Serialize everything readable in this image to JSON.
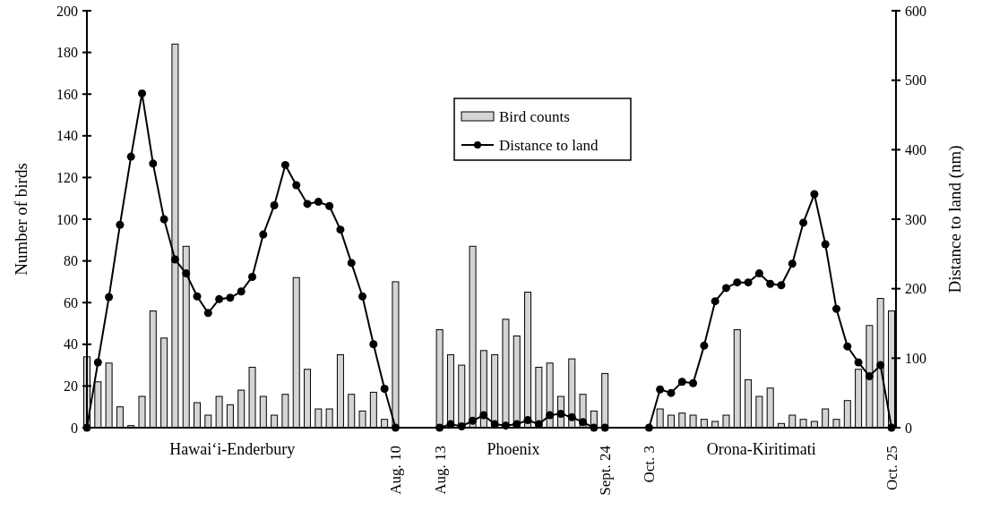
{
  "chart_data": {
    "type": "bar",
    "categories": [
      null,
      null,
      null,
      null,
      null,
      null,
      null,
      null,
      null,
      null,
      null,
      null,
      null,
      null,
      null,
      null,
      null,
      null,
      null,
      null,
      null,
      null,
      null,
      null,
      null,
      null,
      null,
      null,
      "Aug. 10",
      null,
      null,
      null,
      "Aug. 13",
      null,
      null,
      null,
      null,
      null,
      null,
      null,
      null,
      null,
      null,
      null,
      null,
      null,
      null,
      "Sept. 24",
      null,
      null,
      null,
      "Oct. 3",
      null,
      null,
      null,
      null,
      null,
      null,
      null,
      null,
      null,
      null,
      null,
      null,
      null,
      null,
      null,
      null,
      null,
      null,
      null,
      null,
      null,
      "Oct. 25"
    ],
    "series": [
      {
        "name": "Bird counts",
        "color": "#d4d4d4",
        "values": [
          34,
          22,
          31,
          10,
          1,
          15,
          56,
          43,
          184,
          87,
          12,
          6,
          15,
          11,
          18,
          29,
          15,
          6,
          16,
          72,
          28,
          9,
          9,
          35,
          16,
          8,
          17,
          4,
          70,
          null,
          null,
          null,
          47,
          35,
          30,
          87,
          37,
          35,
          52,
          44,
          65,
          29,
          31,
          15,
          33,
          16,
          8,
          26,
          null,
          null,
          null,
          null,
          9,
          6,
          7,
          6,
          4,
          3,
          6,
          47,
          23,
          15,
          19,
          2,
          6,
          4,
          3,
          9,
          4,
          13,
          28,
          49,
          62,
          56
        ]
      },
      {
        "name": "Distance to land",
        "type": "line",
        "axis": "y2",
        "color": "#000000",
        "marker": "circle",
        "line_style": "solid",
        "values": [
          0,
          94,
          188,
          292,
          390,
          481,
          380,
          300,
          242,
          222,
          189,
          165,
          185,
          187,
          196,
          217,
          278,
          320,
          378,
          349,
          322,
          325,
          319,
          285,
          237,
          189,
          120,
          56,
          0,
          null,
          null,
          null,
          0,
          5,
          2,
          10,
          18,
          5,
          3,
          5,
          11,
          5,
          18,
          20,
          15,
          8,
          0,
          0,
          null,
          null,
          null,
          0,
          55,
          50,
          66,
          64,
          118,
          182,
          201,
          209,
          209,
          222,
          207,
          205,
          236,
          295,
          336,
          264,
          171,
          117,
          94,
          74,
          90,
          0
        ]
      }
    ],
    "ylabel": "Number of birds",
    "y2label": "Distance to land (nm)",
    "ylim": [
      0,
      200
    ],
    "yticks": [
      0,
      20,
      40,
      60,
      80,
      100,
      120,
      140,
      160,
      180,
      200
    ],
    "y2lim": [
      0,
      600
    ],
    "y2ticks": [
      0,
      100,
      200,
      300,
      400,
      500,
      600
    ],
    "annotations": [
      "Hawai‘i-Enderbury",
      "Phoenix",
      "Orona-Kiritimati"
    ],
    "legend": "top"
  }
}
